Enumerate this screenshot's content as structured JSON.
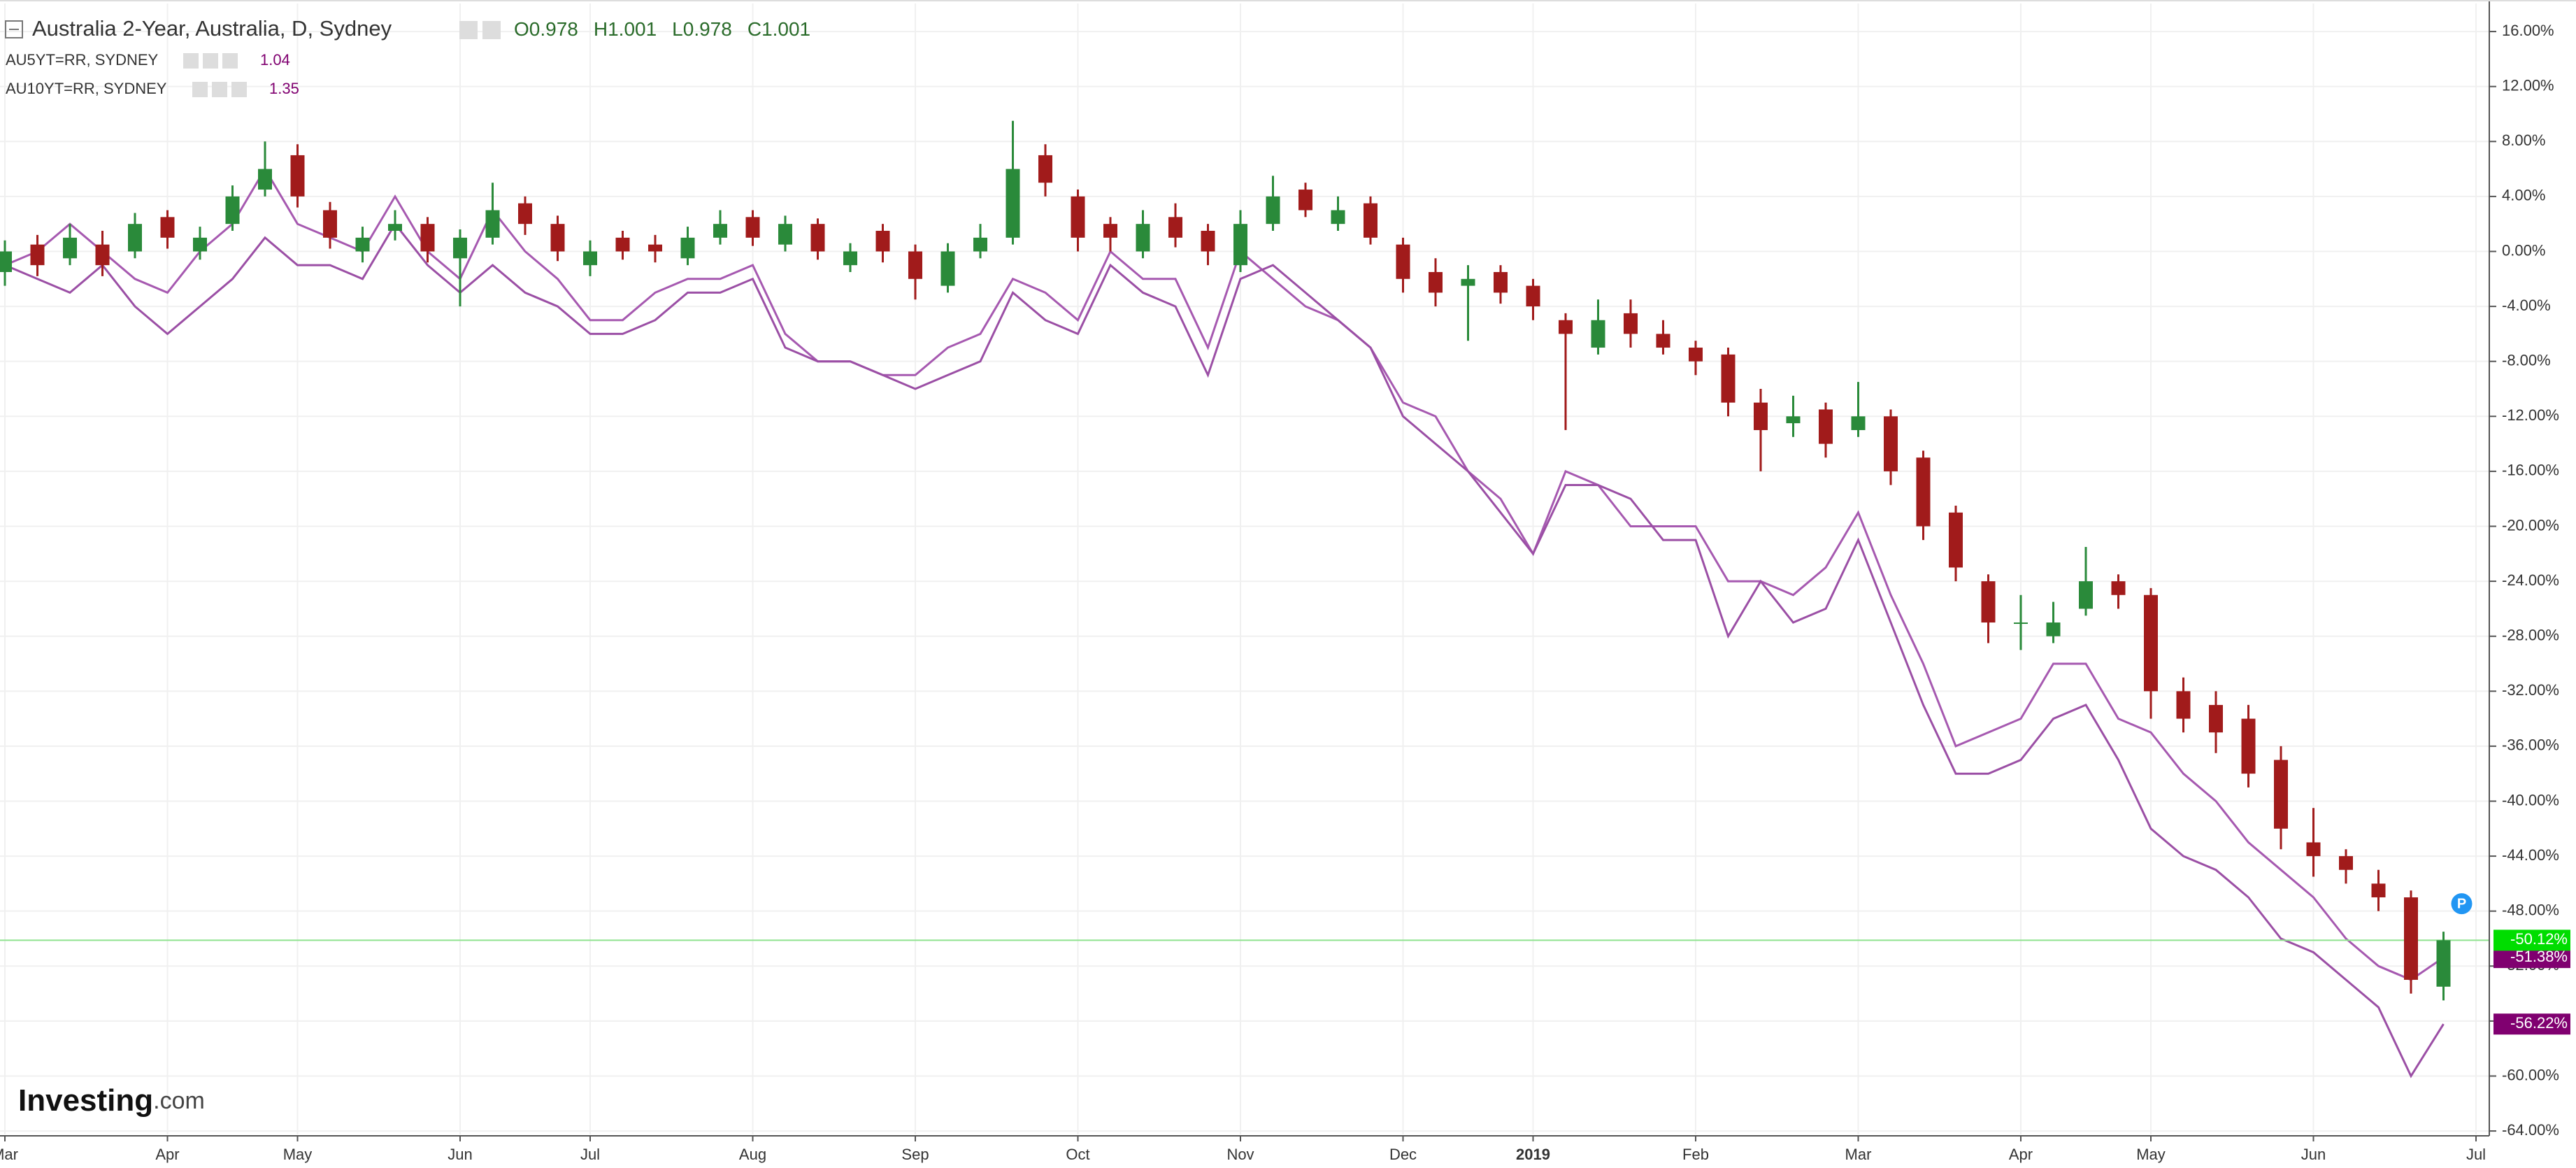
{
  "chart_data": {
    "type": "candlestick",
    "title": "Australia 2-Year, Australia, D, Sydney",
    "ohlc_header": [
      {
        "label": "O",
        "value": 0.978
      },
      {
        "label": "H",
        "value": 1.001
      },
      {
        "label": "L",
        "value": 0.978
      },
      {
        "label": "C",
        "value": 1.001
      }
    ],
    "categories": [
      "Mar",
      null,
      null,
      null,
      null,
      "Apr",
      null,
      null,
      null,
      "May",
      null,
      null,
      null,
      null,
      "Jun",
      null,
      null,
      null,
      "Jul",
      null,
      null,
      null,
      null,
      "Aug",
      null,
      null,
      null,
      null,
      "Sep",
      null,
      null,
      null,
      null,
      "Oct",
      null,
      null,
      null,
      null,
      "Nov",
      null,
      null,
      null,
      null,
      "Dec",
      null,
      null,
      null,
      "2019",
      null,
      null,
      null,
      null,
      "Feb",
      null,
      null,
      null,
      null,
      "Mar",
      null,
      null,
      null,
      null,
      "Apr",
      null,
      null,
      null,
      "May",
      null,
      null,
      null,
      null,
      "Jun",
      null,
      null,
      null,
      null,
      "Jul"
    ],
    "series": [
      {
        "type": "candlestick",
        "up_color": "#2a8a3a",
        "down_color": "#a11b1b",
        "open": [
          -1.5,
          0.5,
          -0.5,
          0.5,
          0,
          2.5,
          0,
          2,
          4.5,
          7,
          3,
          0,
          1.5,
          2,
          -0.5,
          1,
          3.5,
          2,
          -1,
          1,
          0.5,
          -0.5,
          1,
          2.5,
          0.5,
          2,
          -1,
          1.5,
          0,
          -2.5,
          0,
          1,
          7,
          4,
          2,
          0,
          2.5,
          1.5,
          -1,
          2,
          4.5,
          2,
          3.5,
          0.5,
          -1.5,
          -2.5,
          -1.5,
          -2.5,
          -5,
          -7,
          -4.5,
          -6,
          -7,
          -7.5,
          -11,
          -12.5,
          -11.5,
          -13,
          -12,
          -15,
          -19,
          -24,
          -27,
          -28,
          -26,
          -24,
          -25,
          -32,
          -33,
          -34,
          -37,
          -43,
          -44,
          -46,
          -47,
          -53.5,
          null
        ],
        "high": [
          0.8,
          1.2,
          2,
          1.5,
          2.8,
          3,
          1.8,
          4.8,
          8,
          7.8,
          3.6,
          1.8,
          3,
          2.5,
          1.6,
          5,
          4,
          2.6,
          0.8,
          1.5,
          1.2,
          1.8,
          3,
          3,
          2.6,
          2.4,
          0.6,
          2,
          0.5,
          0.6,
          2,
          9.5,
          7.8,
          4.5,
          2.5,
          3,
          3.5,
          2,
          3,
          5.5,
          5,
          4,
          4,
          1,
          -0.5,
          -1,
          -1,
          -2,
          -4.5,
          -3.5,
          -3.5,
          -5,
          -6.5,
          -7,
          -10,
          -10.5,
          -11,
          -9.5,
          -11.5,
          -14.5,
          -18.5,
          -23.5,
          -25,
          -25.5,
          -21.5,
          -23.5,
          -24.5,
          -31,
          -32,
          -33,
          -36,
          -40.5,
          -43.5,
          -45,
          -46.5,
          -49.5,
          null
        ],
        "low": [
          -2.5,
          -1.8,
          -1,
          -1.8,
          -0.5,
          0.2,
          -0.6,
          1.5,
          4,
          3.2,
          0.2,
          -0.8,
          0.8,
          -0.8,
          -4,
          0.5,
          1.2,
          -0.7,
          -1.8,
          -0.6,
          -0.8,
          -1,
          0.5,
          0.4,
          0,
          -0.6,
          -1.5,
          -0.8,
          -3.5,
          -3,
          -0.5,
          0.5,
          4,
          0,
          0,
          -0.5,
          0.3,
          -1,
          -1.5,
          1.5,
          2.5,
          1.5,
          0.5,
          -3,
          -4,
          -6.5,
          -3.8,
          -5,
          -13,
          -7.5,
          -7,
          -7.5,
          -9,
          -12,
          -16,
          -13.5,
          -15,
          -13.5,
          -17,
          -21,
          -24,
          -28.5,
          -29,
          -28.5,
          -26.5,
          -26,
          -34,
          -35,
          -36.5,
          -39,
          -43.5,
          -45.5,
          -46,
          -48,
          -54,
          -54.5,
          null
        ],
        "close": [
          0,
          -1,
          1,
          -1,
          2,
          1,
          1,
          4,
          6,
          4,
          1,
          1,
          2,
          0,
          1,
          3,
          2,
          0,
          0,
          0,
          0,
          1,
          2,
          1,
          2,
          0,
          0,
          0,
          -2,
          0,
          1,
          6,
          5,
          1,
          1,
          2,
          1,
          0,
          2,
          4,
          3,
          3,
          1,
          -2,
          -3,
          -2,
          -3,
          -4,
          -6,
          -5,
          -6,
          -7,
          -8,
          -11,
          -13,
          -12,
          -14,
          -12,
          -16,
          -20,
          -23,
          -27,
          -27,
          -27,
          -24,
          -25,
          -32,
          -34,
          -35,
          -38,
          -42,
          -44,
          -45,
          -47,
          -53,
          -50.12,
          null
        ],
        "last_label": "-50.12%",
        "label_color": "#00dd00",
        "price_line_color": "#8fe38f"
      },
      {
        "type": "line",
        "name": "AU5YT=RR, SYDNEY",
        "legend_value": 1.04,
        "color": "#a659b0",
        "label_color": "#800070",
        "last_label": "-51.38%",
        "values": [
          -1,
          0,
          2,
          0,
          -2,
          -3,
          0,
          2,
          6,
          2,
          1,
          0,
          4,
          0,
          -2,
          3,
          0,
          -2,
          -5,
          -5,
          -3,
          -2,
          -2,
          -1,
          -6,
          -8,
          -8,
          -9,
          -9,
          -7,
          -6,
          -2,
          -3,
          -5,
          0,
          -2,
          -2,
          -7,
          0,
          -2,
          -4,
          -5,
          -7,
          -11,
          -12,
          -16,
          -18,
          -22,
          -16,
          -17,
          -20,
          -20,
          -20,
          -24,
          -24,
          -25,
          -23,
          -19,
          -25,
          -30,
          -36,
          -35,
          -34,
          -30,
          -30,
          -34,
          -35,
          -38,
          -40,
          -43,
          -45,
          -47,
          -50,
          -52,
          -53,
          -51.38,
          null
        ]
      },
      {
        "type": "line",
        "name": "AU10YT=RR, SYDNEY",
        "legend_value": 1.35,
        "color": "#9b4fa5",
        "label_color": "#800070",
        "last_label": "-56.22%",
        "values": [
          -1,
          -2,
          -3,
          -1,
          -4,
          -6,
          -4,
          -2,
          1,
          -1,
          -1,
          -2,
          2,
          -1,
          -3,
          -1,
          -3,
          -4,
          -6,
          -6,
          -5,
          -3,
          -3,
          -2,
          -7,
          -8,
          -8,
          -9,
          -10,
          -9,
          -8,
          -3,
          -5,
          -6,
          -1,
          -3,
          -4,
          -9,
          -2,
          -1,
          -3,
          -5,
          -7,
          -12,
          -14,
          -16,
          -19,
          -22,
          -17,
          -17,
          -18,
          -21,
          -21,
          -28,
          -24,
          -27,
          -26,
          -21,
          -27,
          -33,
          -38,
          -38,
          -37,
          -34,
          -33,
          -37,
          -42,
          -44,
          -45,
          -47,
          -50,
          -51,
          -53,
          -55,
          -60,
          -56.22,
          null
        ]
      }
    ],
    "ylim": [
      -64.25,
      18.04
    ],
    "yticks": [
      {
        "value": 16,
        "label": "16.00%"
      },
      {
        "value": 12,
        "label": "12.00%"
      },
      {
        "value": 8,
        "label": "8.00%"
      },
      {
        "value": 4,
        "label": "4.00%"
      },
      {
        "value": 0,
        "label": "0.00%"
      },
      {
        "value": -4,
        "label": "-4.00%"
      },
      {
        "value": -8,
        "label": "-8.00%"
      },
      {
        "value": -12,
        "label": "-12.00%"
      },
      {
        "value": -16,
        "label": "-16.00%"
      },
      {
        "value": -20,
        "label": "-20.00%"
      },
      {
        "value": -24,
        "label": "-24.00%"
      },
      {
        "value": -28,
        "label": "-28.00%"
      },
      {
        "value": -32,
        "label": "-32.00%"
      },
      {
        "value": -36,
        "label": "-36.00%"
      },
      {
        "value": -40,
        "label": "-40.00%"
      },
      {
        "value": -44,
        "label": "-44.00%"
      },
      {
        "value": -48,
        "label": "-48.00%"
      },
      {
        "value": -52,
        "label": "-52.00%"
      },
      {
        "value": -56,
        "label": "-56.00%"
      },
      {
        "value": -60,
        "label": "-60.00%"
      },
      {
        "value": -64,
        "label": "-64.00%"
      }
    ],
    "y_axis_side": "right",
    "grid": true,
    "marker": "P",
    "watermark": [
      "Investing",
      ".com"
    ]
  }
}
